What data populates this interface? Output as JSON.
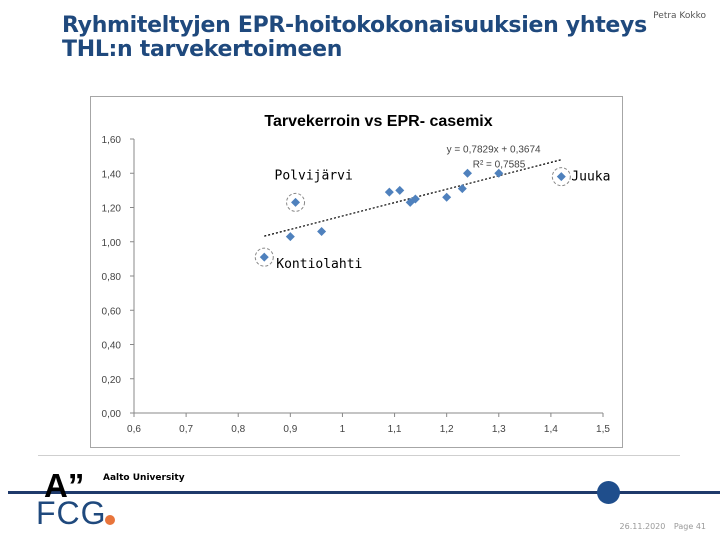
{
  "slide": {
    "author": "Petra Kokko",
    "title_line1": "Ryhmiteltyjen EPR-hoitokokonaisuuksien yhteys",
    "title_line2": "THL:n  tarvekertoimeen",
    "footer_date": "26.11.2020",
    "footer_page": "Page 41"
  },
  "logos": {
    "aalto_mark": "A”",
    "aalto_name": "Aalto University",
    "fcg_name": "FCG",
    "fcg_dot_color": "#e8743b"
  },
  "colors": {
    "title": "#1f497d",
    "marker": "#4f81bd",
    "accent_dot": "#1f4e8c"
  },
  "chart_data": {
    "type": "scatter",
    "title": "Tarvekerroin vs EPR- casemix",
    "xlim": [
      0.6,
      1.5
    ],
    "ylim": [
      0.0,
      1.6
    ],
    "xticks": [
      "0,6",
      "0,7",
      "0,8",
      "0,9",
      "1",
      "1,1",
      "1,2",
      "1,3",
      "1,4",
      "1,5"
    ],
    "yticks": [
      "0,00",
      "0,20",
      "0,40",
      "0,60",
      "0,80",
      "1,00",
      "1,20",
      "1,40",
      "1,60"
    ],
    "grid": false,
    "points": [
      {
        "x": 0.85,
        "y": 0.91
      },
      {
        "x": 0.9,
        "y": 1.03
      },
      {
        "x": 0.91,
        "y": 1.23
      },
      {
        "x": 0.96,
        "y": 1.06
      },
      {
        "x": 1.09,
        "y": 1.29
      },
      {
        "x": 1.11,
        "y": 1.3
      },
      {
        "x": 1.13,
        "y": 1.23
      },
      {
        "x": 1.14,
        "y": 1.25
      },
      {
        "x": 1.2,
        "y": 1.26
      },
      {
        "x": 1.23,
        "y": 1.31
      },
      {
        "x": 1.24,
        "y": 1.4
      },
      {
        "x": 1.3,
        "y": 1.4
      },
      {
        "x": 1.42,
        "y": 1.38
      }
    ],
    "trendline": {
      "slope": 0.7829,
      "intercept": 0.3674,
      "x_range": [
        0.85,
        1.42
      ]
    },
    "equation": "y = 0,7829x + 0,3674",
    "r2": "R² = 0,7585",
    "annotations": [
      {
        "text": "Polvijärvi",
        "x": 0.91,
        "y": 1.23
      },
      {
        "text": "Juuka",
        "x": 1.42,
        "y": 1.38
      },
      {
        "text": "Kontiolahti",
        "x": 0.85,
        "y": 0.91
      }
    ]
  }
}
